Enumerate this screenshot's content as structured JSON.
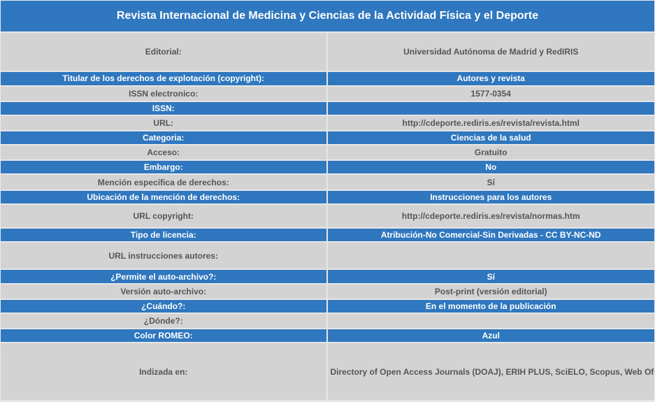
{
  "title": "Revista Internacional de Medicina y Ciencias de la Actividad Física y el Deporte",
  "colors": {
    "blue_row": "#2f77bf",
    "gray_row": "#d3d3d3",
    "gray_text": "#555555"
  },
  "rows": [
    {
      "label": "Editorial:",
      "value": "Universidad Autónoma de Madrid y RedIRIS",
      "style": "gray",
      "h": 56
    },
    {
      "label": "Titular de los derechos de explotación (copyright):",
      "value": "Autores y revista",
      "style": "blue",
      "h": 20
    },
    {
      "label": "ISSN electronico:",
      "value": "1577-0354",
      "style": "gray",
      "h": 22
    },
    {
      "label": "ISSN:",
      "value": "",
      "style": "blue",
      "h": 20
    },
    {
      "label": "URL:",
      "value": "http://cdeporte.rediris.es/revista/revista.html",
      "style": "gray",
      "h": 22
    },
    {
      "label": "Categoria:",
      "value": "Ciencias de la salud",
      "style": "blue",
      "h": 20
    },
    {
      "label": "Acceso:",
      "value": "Gratuito",
      "style": "gray",
      "h": 22
    },
    {
      "label": "Embargo:",
      "value": "No",
      "style": "blue",
      "h": 20
    },
    {
      "label": "Mención específica de derechos:",
      "value": "Sí",
      "style": "gray",
      "h": 22
    },
    {
      "label": "Ubicación de la mención de derechos:",
      "value": "Instrucciones para los autores",
      "style": "blue",
      "h": 20
    },
    {
      "label": "URL copyright:",
      "value": "http://cdeporte.rediris.es/revista/normas.htm",
      "style": "gray",
      "h": 34
    },
    {
      "label": "Tipo de licencia:",
      "value": "Atribución-No Comercial-Sin Derivadas - CC BY-NC-ND",
      "style": "blue",
      "h": 20
    },
    {
      "label": "URL instrucciones autores:",
      "value": "",
      "style": "gray",
      "h": 39
    },
    {
      "label": "¿Permite el auto-archivo?:",
      "value": "Sí",
      "style": "blue",
      "h": 20
    },
    {
      "label": "Versión auto-archivo:",
      "value": "Post-print (versión editorial)",
      "style": "gray",
      "h": 22
    },
    {
      "label": "¿Cuándo?:",
      "value": "En el momento de la publicación",
      "style": "blue",
      "h": 20
    },
    {
      "label": "¿Dónde?:",
      "value": "",
      "style": "gray",
      "h": 22
    },
    {
      "label": "Color ROMEO:",
      "value": "Azul",
      "style": "blue",
      "h": 20
    },
    {
      "label": "Indizada en:",
      "value": "Directory of Open Access Journals (DOAJ), ERIH PLUS, SciELO, Scopus, Web Of Science (WOS)",
      "style": "gray",
      "h": 82
    }
  ]
}
